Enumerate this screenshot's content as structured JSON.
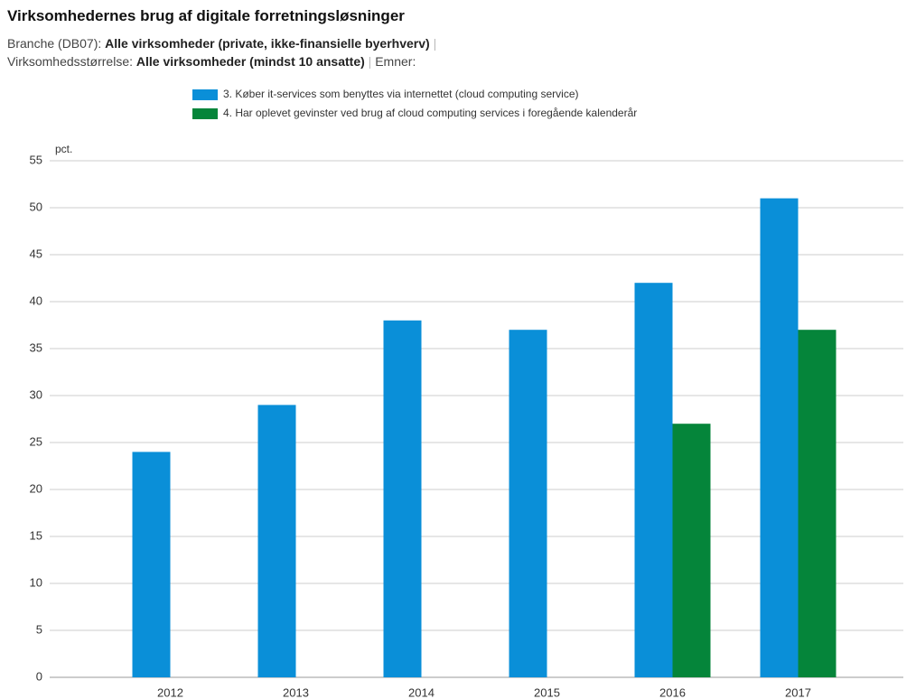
{
  "chart_data": {
    "type": "bar",
    "title": "Virksomhedernes brug af digitale forretningsløsninger",
    "filters": [
      {
        "label": "Branche (DB07):",
        "value": "Alle virksomheder (private, ikke-finansielle byerhverv)"
      },
      {
        "label": "Virksomhedsstørrelse:",
        "value": "Alle virksomheder (mindst 10 ansatte)"
      }
    ],
    "separator": "|",
    "topics_label": "Emner:",
    "y_label": "pct.",
    "categories": [
      "2012",
      "2013",
      "2014",
      "2015",
      "2016",
      "2017"
    ],
    "series": [
      {
        "name": "3. Køber it-services som benyttes via internettet (cloud computing service)",
        "color": "#0a8fd8",
        "values": [
          24,
          29,
          38,
          37,
          42,
          51
        ]
      },
      {
        "name": "4. Har oplevet gevinster ved brug af cloud computing services i foregående kalenderår",
        "color": "#05853a",
        "values": [
          null,
          null,
          null,
          null,
          27,
          37
        ]
      }
    ],
    "ylim": [
      0,
      55
    ],
    "yticks": [
      0,
      5,
      10,
      15,
      20,
      25,
      30,
      35,
      40,
      45,
      50,
      55
    ],
    "grid": true
  }
}
